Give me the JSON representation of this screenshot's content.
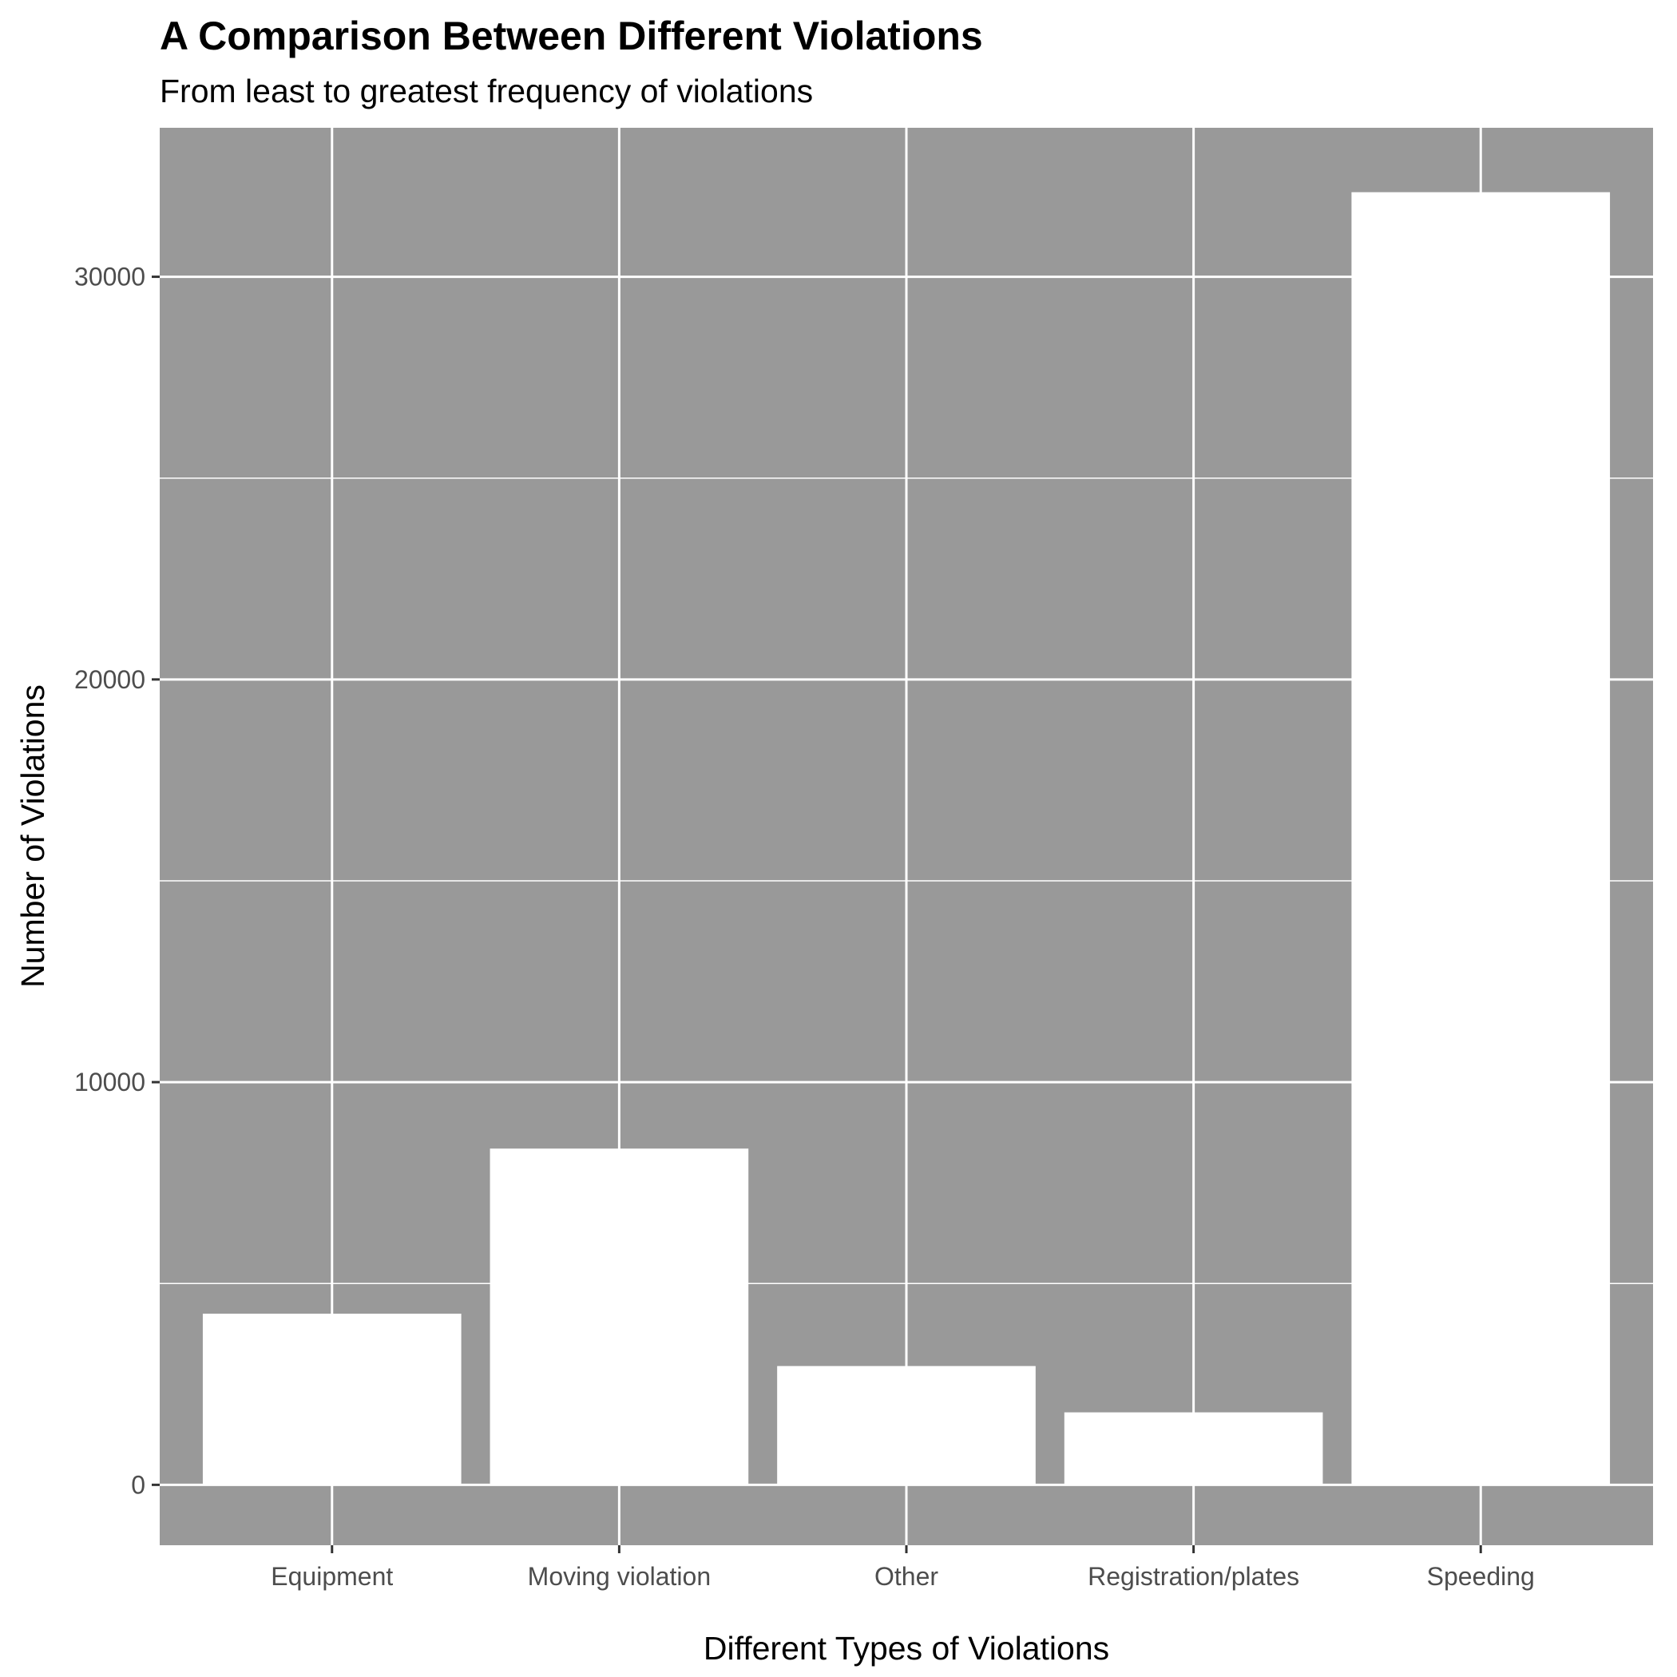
{
  "chart_data": {
    "type": "bar",
    "title": "A Comparison Between Different Violations",
    "subtitle": "From least to greatest frequency of violations",
    "xlabel": "Different Types of Violations",
    "ylabel": "Number of Violations",
    "categories": [
      "Equipment",
      "Moving violation",
      "Other",
      "Registration/plates",
      "Speeding"
    ],
    "values": [
      4250,
      8350,
      2950,
      1800,
      32100
    ],
    "ylim": [
      -1500,
      33700
    ],
    "yticks": [
      0,
      10000,
      20000,
      30000
    ],
    "ytick_labels": [
      "0",
      "10000",
      "20000",
      "30000"
    ],
    "grid": true,
    "legend": "none",
    "colors": {
      "panel": "#999999",
      "bar": "#ffffff",
      "grid": "#ffffff",
      "tick_text": "#4d4d4d"
    }
  }
}
